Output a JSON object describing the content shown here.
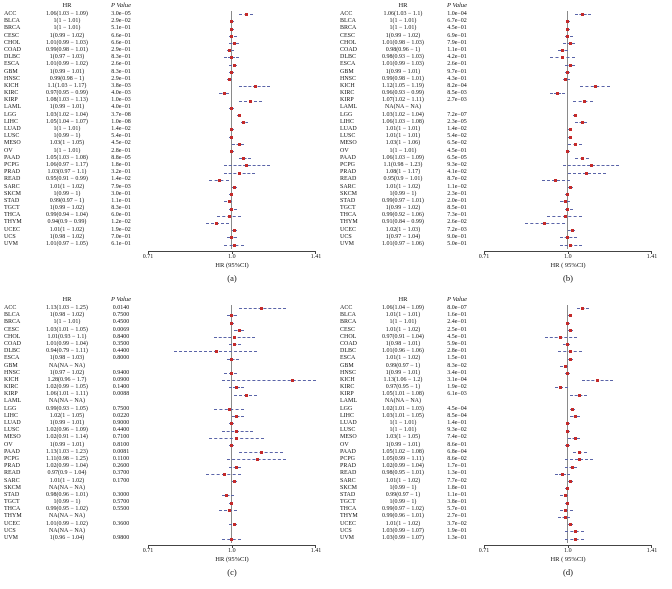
{
  "figure": {
    "colors": {
      "point_square": "#c42a2a",
      "ci_dash": "#5a64a8",
      "reference_line": "#8a8a8a",
      "axis": "#444444",
      "text": "#111111"
    }
  },
  "chart_data": [
    {
      "panel_id": "a",
      "panel_label": "(a)",
      "type": "forest",
      "col_headers": {
        "hr": "HR",
        "p": "P Value"
      },
      "xlabel": "HR (95%CI)",
      "x_ticks": [
        "0.71",
        "1.0",
        "1.41"
      ],
      "x_range": [
        0.71,
        1.41
      ],
      "x_scale": "log",
      "reference_line": 1.0,
      "row_format": [
        "cancer",
        "hr_ci_text",
        "p_value_text",
        "hr",
        "ci_low",
        "ci_high"
      ],
      "rows": [
        [
          "ACC",
          "1.06(1.03 − 1.09)",
          "3.0e−05",
          1.06,
          1.03,
          1.09
        ],
        [
          "BLCA",
          "1(1 − 1.01)",
          "2.9e−02",
          1,
          1,
          1.01
        ],
        [
          "BRCA",
          "1(1 − 1.01)",
          "5.1e−01",
          1,
          1,
          1.01
        ],
        [
          "CESC",
          "1(0.99 − 1.02)",
          "6.6e−01",
          1,
          0.99,
          1.02
        ],
        [
          "CHOL",
          "1.01(0.99 − 1.03)",
          "6.6e−01",
          1.01,
          0.99,
          1.03
        ],
        [
          "COAD",
          "0.99(0.98 − 1.01)",
          "2.9e−01",
          0.99,
          0.98,
          1.01
        ],
        [
          "DLBC",
          "1(0.97 − 1.03)",
          "8.3e−01",
          1,
          0.97,
          1.03
        ],
        [
          "ESCA",
          "1.01(0.99 − 1.02)",
          "2.6e−01",
          1.01,
          0.99,
          1.02
        ],
        [
          "GBM",
          "1(0.99 − 1.01)",
          "8.3e−01",
          1,
          0.99,
          1.01
        ],
        [
          "HNSC",
          "0.99(0.98 − 1)",
          "2.9e−01",
          0.99,
          0.98,
          1
        ],
        [
          "KICH",
          "1.1(1.03 − 1.17)",
          "3.8e−03",
          1.1,
          1.03,
          1.17
        ],
        [
          "KIRC",
          "0.97(0.95 − 0.99)",
          "4.0e−03",
          0.97,
          0.95,
          0.99
        ],
        [
          "KIRP",
          "1.08(1.03 − 1.13)",
          "1.0e−03",
          1.08,
          1.03,
          1.13
        ],
        [
          "LAML",
          "1(0.99 − 1.01)",
          "4.0e−01",
          1,
          0.99,
          1.01
        ],
        [
          "LGG",
          "1.03(1.02 − 1.04)",
          "3.7e−08",
          1.03,
          1.02,
          1.04
        ],
        [
          "LIHC",
          "1.05(1.04 − 1.07)",
          "1.0e−08",
          1.05,
          1.04,
          1.07
        ],
        [
          "LUAD",
          "1(1 − 1.01)",
          "1.4e−02",
          1,
          1,
          1.01
        ],
        [
          "LUSC",
          "1(0.99 − 1)",
          "5.4e−01",
          1,
          0.99,
          1
        ],
        [
          "MESO",
          "1.03(1 − 1.05)",
          "4.5e−02",
          1.03,
          1,
          1.05
        ],
        [
          "OV",
          "1(1 − 1.01)",
          "2.8e−01",
          1,
          1,
          1.01
        ],
        [
          "PAAD",
          "1.05(1.03 − 1.08)",
          "8.8e−05",
          1.05,
          1.03,
          1.08
        ],
        [
          "PCPG",
          "1.06(0.97 − 1.17)",
          "1.8e−01",
          1.06,
          0.97,
          1.17
        ],
        [
          "PRAD",
          "1.03(0.97 − 1.1)",
          "3.2e−01",
          1.03,
          0.97,
          1.1
        ],
        [
          "READ",
          "0.95(0.91 − 0.99)",
          "1.4e−02",
          0.95,
          0.91,
          0.99
        ],
        [
          "SARC",
          "1.01(1 − 1.02)",
          "7.9e−03",
          1.01,
          1,
          1.02
        ],
        [
          "SKCM",
          "1(0.99 − 1)",
          "3.0e−01",
          1,
          0.99,
          1
        ],
        [
          "STAD",
          "0.99(0.97 − 1)",
          "1.1e−01",
          0.99,
          0.97,
          1
        ],
        [
          "TGCT",
          "1(0.99 − 1.02)",
          "8.3e−01",
          1,
          0.99,
          1.02
        ],
        [
          "THCA",
          "0.99(0.94 − 1.04)",
          "6.0e−01",
          0.99,
          0.94,
          1.04
        ],
        [
          "THYM",
          "0.94(0.9 − 0.99)",
          "1.2e−02",
          0.94,
          0.9,
          0.99
        ],
        [
          "UCEC",
          "1.01(1 − 1.02)",
          "1.9e−02",
          1.01,
          1,
          1.02
        ],
        [
          "UCS",
          "1(0.98 − 1.02)",
          "7.0e−01",
          1,
          0.98,
          1.02
        ],
        [
          "UVM",
          "1.01(0.97 − 1.05)",
          "6.1e−01",
          1.01,
          0.97,
          1.05
        ]
      ]
    },
    {
      "panel_id": "b",
      "panel_label": "(b)",
      "type": "forest",
      "col_headers": {
        "hr": "HR",
        "p": "P Value"
      },
      "xlabel": "HR ( 95%CI)",
      "x_ticks": [
        "0.71",
        "1.0",
        "1.41"
      ],
      "x_range": [
        0.71,
        1.41
      ],
      "x_scale": "log",
      "reference_line": 1.0,
      "row_format": [
        "cancer",
        "hr_ci_text",
        "p_value_text",
        "hr",
        "ci_low",
        "ci_high"
      ],
      "rows": [
        [
          "ACC",
          "1.06(1.03 − 1.1)",
          "1.0e−04",
          1.06,
          1.03,
          1.1
        ],
        [
          "BLCA",
          "1(1 − 1.01)",
          "6.7e−02",
          1,
          1,
          1.01
        ],
        [
          "BRCA",
          "1(1 − 1.01)",
          "4.5e−01",
          1,
          1,
          1.01
        ],
        [
          "CESC",
          "1(0.99 − 1.02)",
          "6.9e−01",
          1,
          0.99,
          1.02
        ],
        [
          "CHOL",
          "1.01(0.98 − 1.03)",
          "7.9e−01",
          1.01,
          0.98,
          1.03
        ],
        [
          "COAD",
          "0.98(0.96 − 1)",
          "1.1e−01",
          0.98,
          0.96,
          1
        ],
        [
          "DLBC",
          "0.98(0.93 − 1.03)",
          "4.2e−01",
          0.98,
          0.93,
          1.03
        ],
        [
          "ESCA",
          "1.01(0.99 − 1.03)",
          "2.6e−01",
          1.01,
          0.99,
          1.03
        ],
        [
          "GBM",
          "1(0.99 − 1.01)",
          "9.7e−01",
          1,
          0.99,
          1.01
        ],
        [
          "HNSC",
          "0.99(0.98 − 1.01)",
          "4.3e−01",
          0.99,
          0.98,
          1.01
        ],
        [
          "KICH",
          "1.12(1.05 − 1.19)",
          "8.2e−04",
          1.12,
          1.05,
          1.19
        ],
        [
          "KIRC",
          "0.96(0.93 − 0.99)",
          "8.5e−03",
          0.96,
          0.93,
          0.99
        ],
        [
          "KIRP",
          "1.07(1.02 − 1.11)",
          "2.7e−03",
          1.07,
          1.02,
          1.11
        ],
        [
          "LAML",
          "NA(NA − NA)",
          "",
          null,
          null,
          null
        ],
        [
          "LGG",
          "1.03(1.02 − 1.04)",
          "7.2e−07",
          1.03,
          1.02,
          1.04
        ],
        [
          "LIHC",
          "1.06(1.03 − 1.08)",
          "2.3e−05",
          1.06,
          1.03,
          1.08
        ],
        [
          "LUAD",
          "1.01(1 − 1.01)",
          "1.4e−02",
          1.01,
          1,
          1.01
        ],
        [
          "LUSC",
          "1.01(1 − 1.01)",
          "5.4e−02",
          1.01,
          1,
          1.01
        ],
        [
          "MESO",
          "1.03(1 − 1.06)",
          "6.5e−02",
          1.03,
          1,
          1.06
        ],
        [
          "OV",
          "1(1 − 1.01)",
          "4.5e−01",
          1,
          1,
          1.01
        ],
        [
          "PAAD",
          "1.06(1.03 − 1.09)",
          "6.5e−05",
          1.06,
          1.03,
          1.09
        ],
        [
          "PCPG",
          "1.1(0.98 − 1.23)",
          "9.3e−02",
          1.1,
          0.98,
          1.23
        ],
        [
          "PRAD",
          "1.08(1 − 1.17)",
          "4.1e−02",
          1.08,
          1,
          1.17
        ],
        [
          "READ",
          "0.95(0.9 − 1.01)",
          "8.7e−02",
          0.95,
          0.9,
          1.01
        ],
        [
          "SARC",
          "1.01(1 − 1.02)",
          "1.1e−02",
          1.01,
          1,
          1.02
        ],
        [
          "SKCM",
          "1(0.99 − 1)",
          "2.3e−01",
          1,
          0.99,
          1
        ],
        [
          "STAD",
          "0.99(0.97 − 1.01)",
          "2.0e−01",
          0.99,
          0.97,
          1.01
        ],
        [
          "TGCT",
          "1(0.99 − 1.02)",
          "8.5e−01",
          1,
          0.99,
          1.02
        ],
        [
          "THCA",
          "0.99(0.92 − 1.06)",
          "7.3e−01",
          0.99,
          0.92,
          1.06
        ],
        [
          "THYM",
          "0.91(0.84 − 0.99)",
          "2.6e−02",
          0.91,
          0.84,
          0.99
        ],
        [
          "UCEC",
          "1.02(1 − 1.03)",
          "7.2e−03",
          1.02,
          1,
          1.03
        ],
        [
          "UCS",
          "1(0.97 − 1.04)",
          "9.0e−01",
          1,
          0.97,
          1.04
        ],
        [
          "UVM",
          "1.01(0.97 − 1.06)",
          "5.0e−01",
          1.01,
          0.97,
          1.06
        ]
      ]
    },
    {
      "panel_id": "c",
      "panel_label": "(c)",
      "type": "forest",
      "col_headers": {
        "hr": "HR",
        "p": "P Value"
      },
      "xlabel": "HR (95%CI)",
      "x_ticks": [
        "0.71",
        "1.0",
        "1.41"
      ],
      "x_range": [
        0.71,
        1.41
      ],
      "x_scale": "log",
      "reference_line": 1.0,
      "row_format": [
        "cancer",
        "hr_ci_text",
        "p_value_text",
        "hr",
        "ci_low",
        "ci_high"
      ],
      "rows": [
        [
          "ACC",
          "1.13(1.03 − 1.25)",
          "0.0140",
          1.13,
          1.03,
          1.25
        ],
        [
          "BLCA",
          "1(0.98 − 1.02)",
          "0.7500",
          1,
          0.98,
          1.02
        ],
        [
          "BRCA",
          "1(1 − 1.01)",
          "0.4500",
          1,
          1,
          1.01
        ],
        [
          "CESC",
          "1.03(1.01 − 1.05)",
          "0.0069",
          1.03,
          1.01,
          1.05
        ],
        [
          "CHOL",
          "1.01(0.93 − 1.1)",
          "0.8400",
          1.01,
          0.93,
          1.1
        ],
        [
          "COAD",
          "1.01(0.99 − 1.04)",
          "0.3500",
          1.01,
          0.99,
          1.04
        ],
        [
          "DLBC",
          "0.94(0.79 − 1.11)",
          "0.4400",
          0.94,
          0.79,
          1.11
        ],
        [
          "ESCA",
          "1(0.98 − 1.03)",
          "0.8000",
          1,
          0.98,
          1.03
        ],
        [
          "GBM",
          "NA(NA − NA)",
          "",
          null,
          null,
          null
        ],
        [
          "HNSC",
          "1(0.97 − 1.02)",
          "0.9400",
          1,
          0.97,
          1.02
        ],
        [
          "KICH",
          "1.28(0.96 − 1.7)",
          "0.0900",
          1.28,
          0.96,
          1.7
        ],
        [
          "KIRC",
          "1.02(0.99 − 1.05)",
          "0.1400",
          1.02,
          0.99,
          1.05
        ],
        [
          "KIRP",
          "1.06(1.01 − 1.11)",
          "0.0088",
          1.06,
          1.01,
          1.11
        ],
        [
          "LAML",
          "NA(NA − NA)",
          "",
          null,
          null,
          null
        ],
        [
          "LGG",
          "0.99(0.93 − 1.05)",
          "0.7500",
          0.99,
          0.93,
          1.05
        ],
        [
          "LIHC",
          "1.02(1 − 1.05)",
          "0.0220",
          1.02,
          1,
          1.05
        ],
        [
          "LUAD",
          "1(0.99 − 1.01)",
          "0.9000",
          1,
          0.99,
          1.01
        ],
        [
          "LUSC",
          "1.02(0.96 − 1.09)",
          "0.4400",
          1.02,
          0.96,
          1.09
        ],
        [
          "MESO",
          "1.02(0.91 − 1.14)",
          "0.7100",
          1.02,
          0.91,
          1.14
        ],
        [
          "OV",
          "1(0.99 − 1.01)",
          "0.8100",
          1,
          0.99,
          1.01
        ],
        [
          "PAAD",
          "1.13(1.03 − 1.23)",
          "0.0081",
          1.13,
          1.03,
          1.23
        ],
        [
          "PCPG",
          "1.11(0.98 − 1.25)",
          "0.1100",
          1.11,
          0.98,
          1.25
        ],
        [
          "PRAD",
          "1.02(0.99 − 1.04)",
          "0.2600",
          1.02,
          0.99,
          1.04
        ],
        [
          "READ",
          "0.97(0.9 − 1.04)",
          "0.3700",
          0.97,
          0.9,
          1.04
        ],
        [
          "SARC",
          "1.01(1 − 1.02)",
          "0.1700",
          1.01,
          1,
          1.02
        ],
        [
          "SKCM",
          "NA(NA − NA)",
          "",
          null,
          null,
          null
        ],
        [
          "STAD",
          "0.98(0.96 − 1.01)",
          "0.3000",
          0.98,
          0.96,
          1.01
        ],
        [
          "TGCT",
          "1(0.99 − 1)",
          "0.5700",
          1,
          0.99,
          1
        ],
        [
          "THCA",
          "0.99(0.95 − 1.02)",
          "0.5500",
          0.99,
          0.95,
          1.02
        ],
        [
          "THYM",
          "NA(NA − NA)",
          "",
          null,
          null,
          null
        ],
        [
          "UCEC",
          "1.01(0.99 − 1.02)",
          "0.3600",
          1.01,
          0.99,
          1.02
        ],
        [
          "UCS",
          "NA(NA − NA)",
          "",
          null,
          null,
          null
        ],
        [
          "UVM",
          "1(0.96 − 1.04)",
          "0.9800",
          1,
          0.96,
          1.04
        ]
      ]
    },
    {
      "panel_id": "d",
      "panel_label": "(d)",
      "type": "forest",
      "col_headers": {
        "hr": "HR",
        "p": "P Value"
      },
      "xlabel": "HR ( 95%CI)",
      "x_ticks": [
        "0.71",
        "1.0",
        "1.41"
      ],
      "x_range": [
        0.71,
        1.41
      ],
      "x_scale": "log",
      "reference_line": 1.0,
      "row_format": [
        "cancer",
        "hr_ci_text",
        "p_value_text",
        "hr",
        "ci_low",
        "ci_high"
      ],
      "rows": [
        [
          "ACC",
          "1.06(1.04 − 1.09)",
          "8.0e−07",
          1.06,
          1.04,
          1.09
        ],
        [
          "BLCA",
          "1.01(1 − 1.01)",
          "1.6e−01",
          1.01,
          1,
          1.01
        ],
        [
          "BRCA",
          "1(1 − 1.01)",
          "2.4e−01",
          1,
          1,
          1.01
        ],
        [
          "CESC",
          "1.01(1 − 1.02)",
          "2.5e−01",
          1.01,
          1,
          1.02
        ],
        [
          "CHOL",
          "0.97(0.91 − 1.04)",
          "4.5e−01",
          0.97,
          0.91,
          1.04
        ],
        [
          "COAD",
          "1(0.98 − 1.01)",
          "5.9e−01",
          1,
          0.98,
          1.01
        ],
        [
          "DLBC",
          "1.01(0.96 − 1.06)",
          "2.8e−01",
          1.01,
          0.96,
          1.06
        ],
        [
          "ESCA",
          "1.01(1 − 1.02)",
          "1.5e−01",
          1.01,
          1,
          1.02
        ],
        [
          "GBM",
          "0.99(0.97 − 1)",
          "8.3e−02",
          0.99,
          0.97,
          1
        ],
        [
          "HNSC",
          "1(0.99 − 1.01)",
          "3.4e−01",
          1,
          0.99,
          1.01
        ],
        [
          "KICH",
          "1.13(1.06 − 1.2)",
          "3.1e−04",
          1.13,
          1.06,
          1.2
        ],
        [
          "KIRC",
          "0.97(0.95 − 1)",
          "1.9e−02",
          0.97,
          0.95,
          1
        ],
        [
          "KIRP",
          "1.05(1.01 − 1.08)",
          "6.1e−03",
          1.05,
          1.01,
          1.08
        ],
        [
          "LAML",
          "NA(NA − NA)",
          "",
          null,
          null,
          null
        ],
        [
          "LGG",
          "1.02(1.01 − 1.03)",
          "4.5e−04",
          1.02,
          1.01,
          1.03
        ],
        [
          "LIHC",
          "1.03(1.01 − 1.05)",
          "8.5e−04",
          1.03,
          1.01,
          1.05
        ],
        [
          "LUAD",
          "1(1 − 1.01)",
          "1.4e−01",
          1,
          1,
          1.01
        ],
        [
          "LUSC",
          "1(1 − 1.01)",
          "9.3e−02",
          1,
          1,
          1.01
        ],
        [
          "MESO",
          "1.03(1 − 1.05)",
          "7.4e−02",
          1.03,
          1,
          1.05
        ],
        [
          "OV",
          "1(0.99 − 1.01)",
          "8.6e−01",
          1,
          0.99,
          1.01
        ],
        [
          "PAAD",
          "1.05(1.02 − 1.08)",
          "6.8e−04",
          1.05,
          1.02,
          1.08
        ],
        [
          "PCPG",
          "1.05(0.99 − 1.11)",
          "8.6e−02",
          1.05,
          0.99,
          1.11
        ],
        [
          "PRAD",
          "1.02(0.99 − 1.04)",
          "1.7e−01",
          1.02,
          0.99,
          1.04
        ],
        [
          "READ",
          "0.98(0.95 − 1.01)",
          "1.3e−01",
          0.98,
          0.95,
          1.01
        ],
        [
          "SARC",
          "1.01(1 − 1.02)",
          "7.7e−02",
          1.01,
          1,
          1.02
        ],
        [
          "SKCM",
          "1(0.99 − 1)",
          "1.8e−01",
          1,
          0.99,
          1
        ],
        [
          "STAD",
          "0.99(0.97 − 1)",
          "1.1e−01",
          0.99,
          0.97,
          1
        ],
        [
          "TGCT",
          "1(0.99 − 1)",
          "3.8e−01",
          1,
          0.99,
          1
        ],
        [
          "THCA",
          "0.99(0.97 − 1.02)",
          "5.7e−01",
          0.99,
          0.97,
          1.02
        ],
        [
          "THYM",
          "0.99(0.96 − 1.01)",
          "2.7e−01",
          0.99,
          0.96,
          1.01
        ],
        [
          "UCEC",
          "1.01(1 − 1.02)",
          "3.7e−02",
          1.01,
          1,
          1.02
        ],
        [
          "UCS",
          "1.03(0.99 − 1.07)",
          "1.9e−01",
          1.03,
          0.99,
          1.07
        ],
        [
          "UVM",
          "1.03(0.99 − 1.07)",
          "1.3e−01",
          1.03,
          0.99,
          1.07
        ]
      ]
    }
  ]
}
